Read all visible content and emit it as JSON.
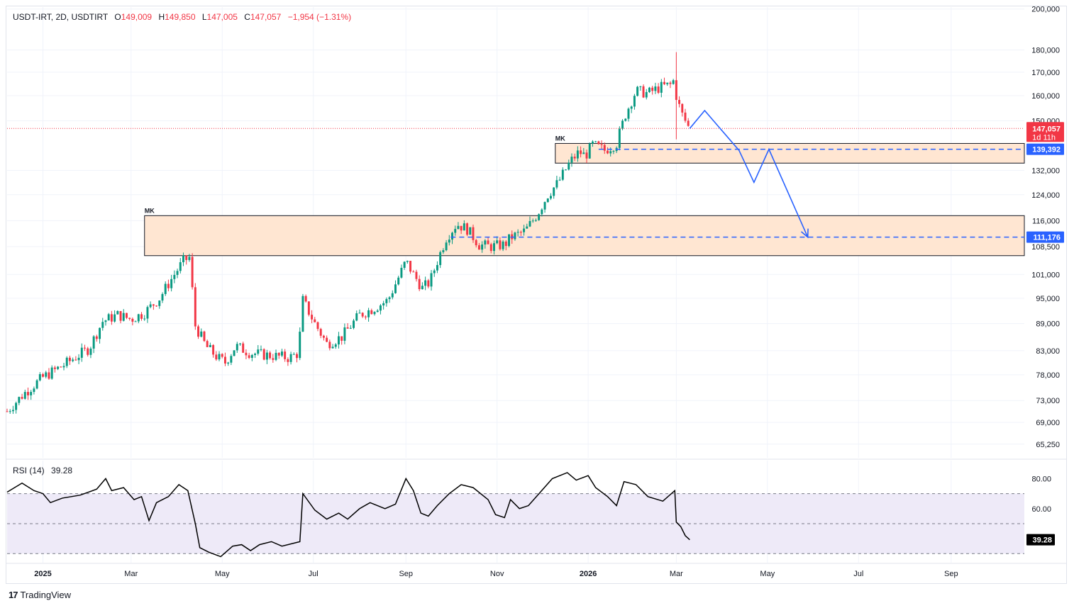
{
  "legend": {
    "symbol": "USDT-IRT, 2D, USDTIRT",
    "open_label": "O",
    "open": "149,009",
    "high_label": "H",
    "high": "149,850",
    "low_label": "L",
    "low": "147,005",
    "close_label": "C",
    "close": "147,057",
    "change": "−1,954 (−1.31%)"
  },
  "rsi_legend": {
    "label": "RSI (14)",
    "value": "39.28"
  },
  "brand": {
    "logo": "17",
    "name": "TradingView"
  },
  "chart_data": {
    "type": "candlestick",
    "title": "USDT-IRT, 2D, USDTIRT",
    "y_scale": "log",
    "ylim": [
      63000,
      201000
    ],
    "xlim": [
      "2024-12-08",
      "2026-10-20"
    ],
    "y_ticks": [
      "200,000",
      "180,000",
      "170,000",
      "160,000",
      "150,000",
      "132,000",
      "124,000",
      "116,000",
      "108,500",
      "101,000",
      "95,000",
      "89,000",
      "83,000",
      "78,000",
      "73,000",
      "69,000",
      "65,250"
    ],
    "x_ticks": [
      {
        "date": "2025-01-01",
        "label": "2025",
        "bold": true
      },
      {
        "date": "2025-03-01",
        "label": "Mar"
      },
      {
        "date": "2025-05-01",
        "label": "May"
      },
      {
        "date": "2025-07-01",
        "label": "Jul"
      },
      {
        "date": "2025-09-01",
        "label": "Sep"
      },
      {
        "date": "2025-11-01",
        "label": "Nov"
      },
      {
        "date": "2026-01-01",
        "label": "2026",
        "bold": true
      },
      {
        "date": "2026-03-01",
        "label": "Mar"
      },
      {
        "date": "2026-05-01",
        "label": "May"
      },
      {
        "date": "2026-07-01",
        "label": "Jul"
      },
      {
        "date": "2026-09-01",
        "label": "Sep"
      }
    ],
    "price_path": [
      [
        "2024-12-08",
        71000
      ],
      [
        "2024-12-20",
        74500
      ],
      [
        "2025-01-01",
        77500
      ],
      [
        "2025-01-15",
        80000
      ],
      [
        "2025-02-01",
        83500
      ],
      [
        "2025-02-10",
        89500
      ],
      [
        "2025-02-20",
        91000
      ],
      [
        "2025-03-01",
        90000
      ],
      [
        "2025-03-10",
        91500
      ],
      [
        "2025-03-20",
        95000
      ],
      [
        "2025-03-30",
        101000
      ],
      [
        "2025-04-05",
        104500
      ],
      [
        "2025-04-09",
        105500
      ],
      [
        "2025-04-13",
        88500
      ],
      [
        "2025-04-20",
        84000
      ],
      [
        "2025-04-28",
        81500
      ],
      [
        "2025-05-03",
        80500
      ],
      [
        "2025-05-10",
        84000
      ],
      [
        "2025-05-20",
        82500
      ],
      [
        "2025-06-01",
        82000
      ],
      [
        "2025-06-15",
        81500
      ],
      [
        "2025-06-21",
        82500
      ],
      [
        "2025-06-24",
        94500
      ],
      [
        "2025-07-02",
        89000
      ],
      [
        "2025-07-10",
        84500
      ],
      [
        "2025-07-20",
        86000
      ],
      [
        "2025-08-01",
        91000
      ],
      [
        "2025-08-10",
        92500
      ],
      [
        "2025-08-20",
        94500
      ],
      [
        "2025-08-28",
        101000
      ],
      [
        "2025-09-01",
        104500
      ],
      [
        "2025-09-06",
        101000
      ],
      [
        "2025-09-12",
        97500
      ],
      [
        "2025-09-17",
        99000
      ],
      [
        "2025-09-22",
        104500
      ],
      [
        "2025-09-28",
        111000
      ],
      [
        "2025-10-05",
        115000
      ],
      [
        "2025-10-12",
        113500
      ],
      [
        "2025-10-20",
        109000
      ],
      [
        "2025-10-28",
        108500
      ],
      [
        "2025-11-06",
        109000
      ],
      [
        "2025-11-10",
        111000
      ],
      [
        "2025-11-20",
        113000
      ],
      [
        "2025-11-28",
        118000
      ],
      [
        "2025-12-05",
        124000
      ],
      [
        "2025-12-12",
        128000
      ],
      [
        "2025-12-20",
        135000
      ],
      [
        "2025-12-26",
        138500
      ],
      [
        "2025-12-30",
        137000
      ],
      [
        "2026-01-04",
        141000
      ],
      [
        "2026-01-12",
        139000
      ],
      [
        "2026-01-20",
        141500
      ],
      [
        "2026-01-26",
        152500
      ],
      [
        "2026-02-02",
        162000
      ],
      [
        "2026-02-10",
        161000
      ],
      [
        "2026-02-18",
        163500
      ],
      [
        "2026-02-25",
        164500
      ],
      [
        "2026-02-28",
        167000
      ],
      [
        "2026-03-01",
        160000
      ],
      [
        "2026-03-04",
        153500
      ],
      [
        "2026-03-07",
        150000
      ],
      [
        "2026-03-10",
        147057
      ]
    ],
    "candles_first_date": "2024-12-08",
    "candles_step_days": 2,
    "candle_ranges": [
      {
        "from": "2026-02-28",
        "to": "2026-03-02",
        "high": 179000,
        "low": 143000
      }
    ],
    "last_price": {
      "value": 147057,
      "label": "147,057",
      "countdown": "1d 11h",
      "color": "#f23645"
    },
    "zones": [
      {
        "label": "MK",
        "x0": "2025-03-10",
        "x1": "2026-10-20",
        "y0": 106000,
        "y1": 117500,
        "level": 111176,
        "level_label": "111,176",
        "level_x0": "2025-10-01"
      },
      {
        "label": "MK",
        "x0": "2025-12-10",
        "x1": "2026-10-20",
        "y0": 134500,
        "y1": 141500,
        "level": 139392,
        "level_label": "139,392",
        "level_x0": "2026-01-08"
      }
    ],
    "projection": [
      [
        "2026-03-10",
        147057
      ],
      [
        "2026-03-20",
        154000
      ],
      [
        "2026-04-12",
        139000
      ],
      [
        "2026-04-22",
        128000
      ],
      [
        "2026-05-02",
        139392
      ],
      [
        "2026-05-28",
        111176
      ]
    ],
    "colors": {
      "up": "#089981",
      "down": "#f23645",
      "zone_fill": "#ffe6d2",
      "projection": "#2962ff",
      "rsi_line": "#000000",
      "rsi_band": "#eeeaf8"
    },
    "rsi": {
      "name": "RSI (14)",
      "value": 39.28,
      "ylim": [
        24,
        92
      ],
      "bands": [
        30,
        50,
        70
      ],
      "ticks": [
        80,
        60
      ],
      "series": [
        [
          "2024-12-08",
          71
        ],
        [
          "2024-12-18",
          77
        ],
        [
          "2024-12-26",
          72
        ],
        [
          "2025-01-01",
          70
        ],
        [
          "2025-01-06",
          64
        ],
        [
          "2025-01-14",
          67
        ],
        [
          "2025-01-26",
          69
        ],
        [
          "2025-02-06",
          73
        ],
        [
          "2025-02-12",
          80
        ],
        [
          "2025-02-16",
          72
        ],
        [
          "2025-02-24",
          74
        ],
        [
          "2025-03-03",
          66
        ],
        [
          "2025-03-08",
          68
        ],
        [
          "2025-03-13",
          52
        ],
        [
          "2025-03-18",
          64
        ],
        [
          "2025-03-26",
          68
        ],
        [
          "2025-04-02",
          76
        ],
        [
          "2025-04-08",
          72
        ],
        [
          "2025-04-13",
          50
        ],
        [
          "2025-04-16",
          34
        ],
        [
          "2025-04-22",
          31
        ],
        [
          "2025-04-30",
          28
        ],
        [
          "2025-05-08",
          35
        ],
        [
          "2025-05-14",
          36
        ],
        [
          "2025-05-20",
          32
        ],
        [
          "2025-05-26",
          36
        ],
        [
          "2025-06-03",
          38
        ],
        [
          "2025-06-10",
          35
        ],
        [
          "2025-06-18",
          37
        ],
        [
          "2025-06-22",
          38
        ],
        [
          "2025-06-24",
          70
        ],
        [
          "2025-07-02",
          59
        ],
        [
          "2025-07-10",
          53
        ],
        [
          "2025-07-18",
          57
        ],
        [
          "2025-07-24",
          53
        ],
        [
          "2025-08-01",
          60
        ],
        [
          "2025-08-08",
          64
        ],
        [
          "2025-08-18",
          60
        ],
        [
          "2025-08-25",
          63
        ],
        [
          "2025-09-01",
          80
        ],
        [
          "2025-09-06",
          72
        ],
        [
          "2025-09-11",
          57
        ],
        [
          "2025-09-16",
          55
        ],
        [
          "2025-09-22",
          62
        ],
        [
          "2025-09-30",
          70
        ],
        [
          "2025-10-08",
          76
        ],
        [
          "2025-10-16",
          74
        ],
        [
          "2025-10-26",
          66
        ],
        [
          "2025-10-31",
          56
        ],
        [
          "2025-11-06",
          54
        ],
        [
          "2025-11-10",
          66
        ],
        [
          "2025-11-16",
          60
        ],
        [
          "2025-11-22",
          62
        ],
        [
          "2025-11-30",
          71
        ],
        [
          "2025-12-08",
          80
        ],
        [
          "2025-12-18",
          84
        ],
        [
          "2025-12-24",
          79
        ],
        [
          "2026-01-01",
          82
        ],
        [
          "2026-01-06",
          74
        ],
        [
          "2026-01-14",
          68
        ],
        [
          "2026-01-20",
          62
        ],
        [
          "2026-01-25",
          78
        ],
        [
          "2026-02-02",
          76
        ],
        [
          "2026-02-10",
          68
        ],
        [
          "2026-02-20",
          65
        ],
        [
          "2026-02-28",
          72
        ],
        [
          "2026-03-01",
          51
        ],
        [
          "2026-03-04",
          48
        ],
        [
          "2026-03-07",
          42
        ],
        [
          "2026-03-10",
          39.28
        ]
      ]
    }
  }
}
